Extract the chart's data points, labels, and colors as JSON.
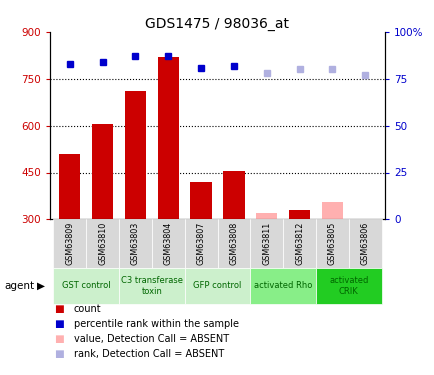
{
  "title": "GDS1475 / 98036_at",
  "samples": [
    "GSM63809",
    "GSM63810",
    "GSM63803",
    "GSM63804",
    "GSM63807",
    "GSM63808",
    "GSM63811",
    "GSM63812",
    "GSM63805",
    "GSM63806"
  ],
  "bar_values": [
    510,
    605,
    710,
    820,
    420,
    455,
    null,
    330,
    null,
    null
  ],
  "bar_absent_values": [
    null,
    null,
    null,
    null,
    null,
    null,
    320,
    null,
    355,
    300
  ],
  "rank_values": [
    83,
    84,
    87,
    87,
    81,
    82,
    null,
    null,
    null,
    null
  ],
  "rank_absent_values": [
    null,
    null,
    null,
    null,
    null,
    null,
    78,
    80,
    80,
    77
  ],
  "bar_color": "#cc0000",
  "bar_absent_color": "#ffb0b0",
  "rank_color": "#0000cc",
  "rank_absent_color": "#b0b0e0",
  "ylim_left": [
    300,
    900
  ],
  "ylim_right": [
    0,
    100
  ],
  "yticks_left": [
    300,
    450,
    600,
    750,
    900
  ],
  "yticks_right": [
    0,
    25,
    50,
    75,
    100
  ],
  "ytick_labels_right": [
    "0",
    "25",
    "50",
    "75",
    "100%"
  ],
  "grid_lines": [
    450,
    600,
    750
  ],
  "groups": [
    {
      "label": "GST control",
      "start": 0,
      "end": 2,
      "color": "#ccf0cc"
    },
    {
      "label": "C3 transferase\ntoxin",
      "start": 2,
      "end": 4,
      "color": "#ccf0cc"
    },
    {
      "label": "GFP control",
      "start": 4,
      "end": 6,
      "color": "#ccf0cc"
    },
    {
      "label": "activated Rho",
      "start": 6,
      "end": 8,
      "color": "#88ee88"
    },
    {
      "label": "activated\nCRIK",
      "start": 8,
      "end": 10,
      "color": "#22cc22"
    }
  ],
  "legend_items": [
    {
      "label": "count",
      "color": "#cc0000"
    },
    {
      "label": "percentile rank within the sample",
      "color": "#0000cc"
    },
    {
      "label": "value, Detection Call = ABSENT",
      "color": "#ffb0b0"
    },
    {
      "label": "rank, Detection Call = ABSENT",
      "color": "#b0b0e0"
    }
  ],
  "agent_label": "agent",
  "sample_box_color": "#d8d8d8",
  "background_color": "#ffffff"
}
